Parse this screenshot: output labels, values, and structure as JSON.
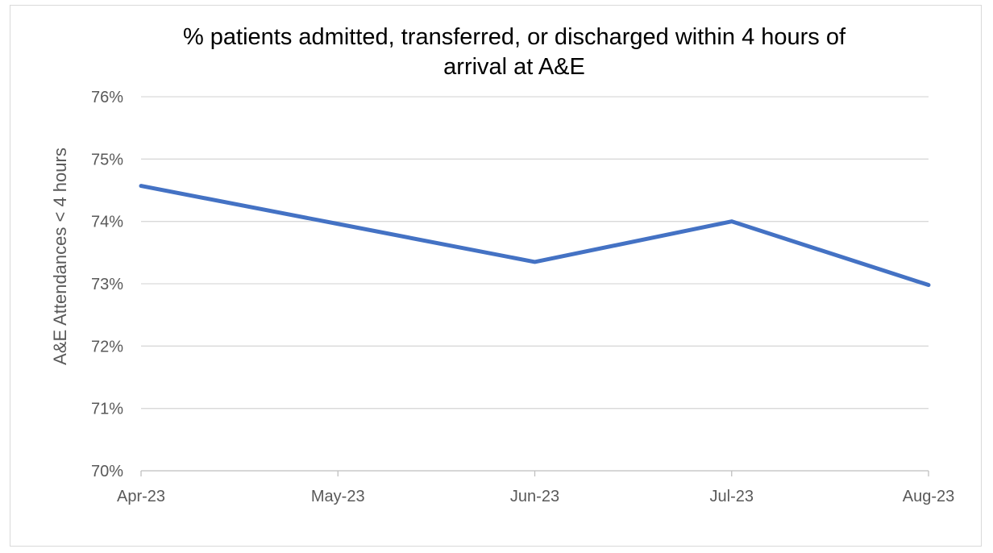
{
  "chart_data": {
    "type": "line",
    "title": "% patients admitted, transferred, or discharged within 4 hours of arrival at A&E",
    "xlabel": "",
    "ylabel": "A&E Attendances < 4 hours",
    "categories": [
      "Apr-23",
      "May-23",
      "Jun-23",
      "Jul-23",
      "Aug-23"
    ],
    "series": [
      {
        "values": [
          74.57,
          73.96,
          73.35,
          74.0,
          72.98
        ],
        "color": "#4472c4"
      }
    ],
    "ylim": [
      70,
      76
    ],
    "y_ticks": [
      "70%",
      "71%",
      "72%",
      "73%",
      "74%",
      "75%",
      "76%"
    ],
    "grid": true,
    "legend": "none"
  }
}
